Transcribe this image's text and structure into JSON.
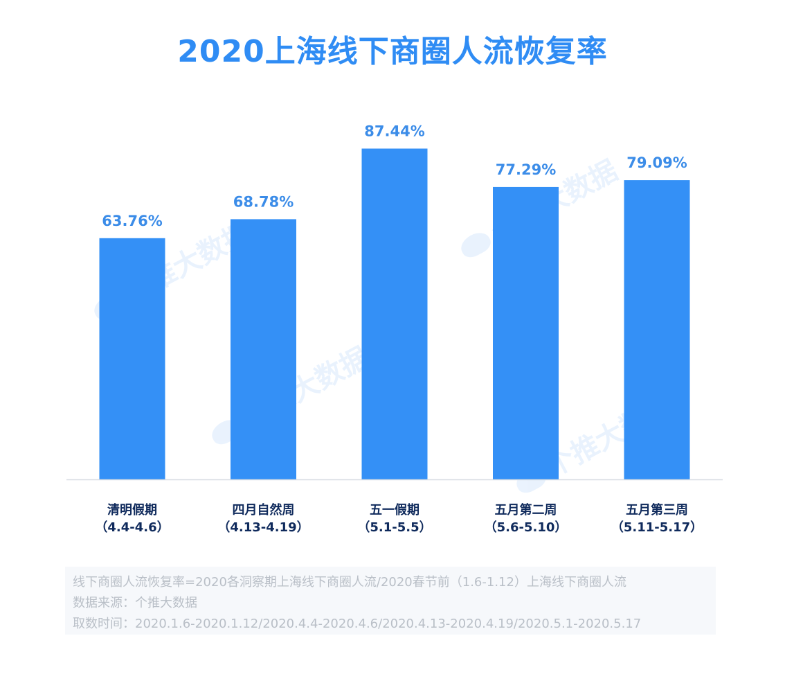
{
  "chart_data": {
    "type": "bar",
    "title": "2020上海线下商圈人流恢复率",
    "categories": [
      {
        "name": "清明假期",
        "range": "（4.4-4.6）"
      },
      {
        "name": "四月自然周",
        "range": "（4.13-4.19）"
      },
      {
        "name": "五一假期",
        "range": "（5.1-5.5）"
      },
      {
        "name": "五月第二周",
        "range": "（5.6-5.10）"
      },
      {
        "name": "五月第三周",
        "range": "（5.11-5.17）"
      }
    ],
    "values": [
      63.76,
      68.78,
      87.44,
      77.29,
      79.09
    ],
    "value_labels": [
      "63.76%",
      "68.78%",
      "87.44%",
      "77.29%",
      "79.09%"
    ],
    "unit": "%",
    "ylim": [
      0,
      100
    ],
    "grid": false,
    "legend": "none",
    "colors": {
      "bar": "#3490f6",
      "title": "#2f8cf4",
      "value_label": "#3b8ce8",
      "category_label": "#0f2a5c",
      "axis": "#d8dce2"
    }
  },
  "footnote": {
    "definition": "线下商圈人流恢复率=2020各洞察期上海线下商圈人流/2020春节前（1.6-1.12）上海线下商圈人流",
    "source": "数据来源：个推大数据",
    "period": "取数时间：2020.1.6-2020.1.12/2020.4.4-2020.4.6/2020.4.13-2020.4.19/2020.5.1-2020.5.17"
  },
  "watermark": {
    "text": "个推大数据",
    "icon": "getui-whale-logo-icon"
  }
}
